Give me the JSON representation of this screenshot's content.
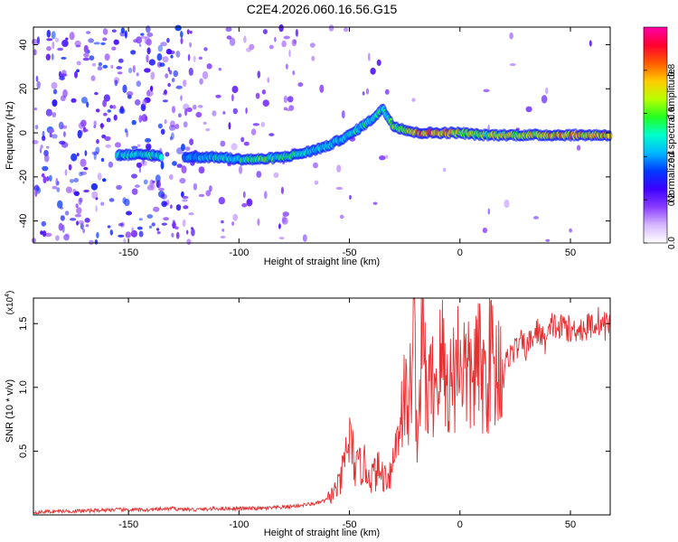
{
  "title": "C2E4.2026.060.16.56.G15",
  "chart_data": [
    {
      "type": "heatmap",
      "name": "spectrogram",
      "xlabel": "Height of straight line (km)",
      "ylabel": "Frequency (Hz)",
      "xlim": [
        -193,
        68
      ],
      "ylim": [
        -50,
        48
      ],
      "xticks": [
        -150,
        -100,
        -50,
        0,
        50
      ],
      "yticks": [
        -40,
        -20,
        0,
        20,
        40
      ],
      "tick_labels_x": [
        "-150",
        "-100",
        "-50",
        "0",
        "50"
      ],
      "tick_labels_y": [
        "-40",
        "-20",
        "0",
        "20",
        "40"
      ],
      "colorbar": {
        "label": "Normalized spectral amplitude",
        "range": [
          0,
          1
        ],
        "ticks": [
          0.0,
          0.2,
          0.4,
          0.6,
          0.8
        ],
        "tick_labels": [
          "0.0",
          "0.2",
          "0.4",
          "0.6",
          "0.8"
        ],
        "colors": [
          "#ffffff",
          "#d6b8ff",
          "#8a3cff",
          "#3d00ff",
          "#0038ff",
          "#00b8ff",
          "#00ffcc",
          "#22ff22",
          "#b8ff00",
          "#ffcc00",
          "#ff5a00",
          "#ff0030",
          "#ff00aa"
        ]
      },
      "signal_track": {
        "x": [
          -155,
          -140,
          -132,
          -125,
          -110,
          -100,
          -90,
          -80,
          -70,
          -60,
          -50,
          -40,
          -35,
          -30,
          -20,
          -10,
          0,
          10,
          20,
          30,
          40,
          50,
          60,
          68
        ],
        "freq": [
          -10,
          -10,
          -11,
          -11,
          -11,
          -12,
          -12,
          -11,
          -9,
          -6,
          -1,
          6,
          11,
          3,
          0,
          0,
          0,
          -1,
          -1,
          -1,
          -1,
          -1,
          -1,
          -1
        ],
        "amplitude": [
          0.5,
          0.6,
          0.5,
          0.4,
          0.55,
          0.6,
          0.65,
          0.6,
          0.55,
          0.5,
          0.55,
          0.6,
          0.55,
          0.7,
          0.9,
          0.95,
          0.8,
          0.7,
          0.75,
          0.8,
          0.85,
          0.9,
          0.85,
          0.9
        ]
      }
    },
    {
      "type": "line",
      "name": "snr",
      "xlabel": "Height of straight line (km)",
      "ylabel": "SNR (10 * v/v)",
      "scale_label_base": "(x10",
      "scale_label_exp": "4",
      "scale_label_end": ")",
      "xlim": [
        -193,
        68
      ],
      "ylim": [
        0,
        1.7
      ],
      "xticks": [
        -150,
        -100,
        -50,
        0,
        50
      ],
      "yticks": [
        0.5,
        1.0,
        1.5
      ],
      "tick_labels_x": [
        "-150",
        "-100",
        "-50",
        "0",
        "50"
      ],
      "tick_labels_y": [
        "0.5",
        "1.0",
        "1.5"
      ],
      "color": "#e53030",
      "series": [
        {
          "name": "SNR",
          "x": [
            -193,
            -180,
            -170,
            -160,
            -150,
            -140,
            -130,
            -120,
            -110,
            -100,
            -90,
            -80,
            -70,
            -65,
            -60,
            -57,
            -54,
            -52,
            -50,
            -47,
            -44,
            -40,
            -37,
            -34,
            -31,
            -29,
            -27,
            -25,
            -23,
            -22,
            -21,
            -20,
            -19,
            -18,
            -17,
            -15,
            -13,
            -10,
            -8,
            -6,
            -4,
            -2,
            0,
            2,
            4,
            6,
            8,
            10,
            12,
            14,
            16,
            18,
            20,
            22,
            25,
            28,
            30,
            33,
            36,
            38,
            40,
            42,
            45,
            48,
            50,
            53,
            56,
            60,
            63,
            65,
            68
          ],
          "y": [
            0.02,
            0.03,
            0.03,
            0.04,
            0.04,
            0.04,
            0.05,
            0.04,
            0.05,
            0.05,
            0.05,
            0.06,
            0.08,
            0.09,
            0.12,
            0.18,
            0.25,
            0.45,
            0.6,
            0.35,
            0.4,
            0.3,
            0.35,
            0.3,
            0.35,
            0.55,
            0.8,
            0.95,
            0.75,
            1.2,
            1.72,
            0.95,
            0.55,
            1.1,
            1.5,
            0.9,
            1.0,
            1.1,
            1.25,
            1.0,
            1.05,
            1.15,
            1.3,
            1.15,
            1.05,
            1.1,
            1.2,
            1.1,
            1.05,
            1.3,
            1.1,
            1.2,
            1.15,
            1.25,
            1.3,
            1.35,
            1.3,
            1.4,
            1.45,
            1.35,
            1.4,
            1.5,
            1.45,
            1.5,
            1.42,
            1.48,
            1.45,
            1.5,
            1.52,
            1.48,
            1.5
          ]
        }
      ]
    }
  ]
}
